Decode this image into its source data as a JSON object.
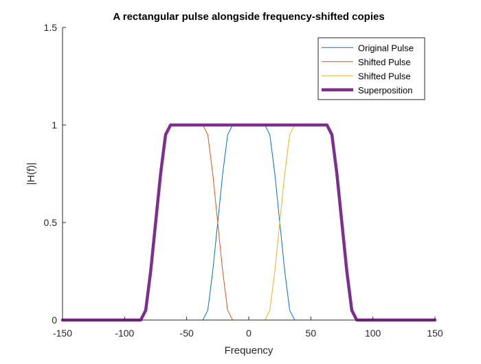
{
  "chart_data": {
    "type": "line",
    "title": "A rectangular pulse alongside frequency-shifted copies",
    "xlabel": "Frequency",
    "ylabel": "|H(f)|",
    "xlim": [
      -150,
      150
    ],
    "ylim": [
      0,
      1.5
    ],
    "xticks": [
      -150,
      -100,
      -50,
      0,
      50,
      100,
      150
    ],
    "yticks": [
      0,
      0.5,
      1,
      1.5
    ],
    "x_tick_labels": [
      "-150",
      "-100",
      "-50",
      "0",
      "50",
      "100",
      "150"
    ],
    "y_tick_labels": [
      "0",
      "0.5",
      "1",
      "1.5"
    ],
    "grid": false,
    "legend_position": "top-right",
    "series": [
      {
        "name": "Original Pulse",
        "color": "#0072BD",
        "line_width": "thin",
        "x": [
          -150,
          -37,
          -33,
          -29,
          -25,
          -21,
          -17,
          -13,
          13,
          17,
          21,
          25,
          29,
          33,
          37,
          150
        ],
        "y": [
          0,
          0,
          0.05,
          0.25,
          0.5,
          0.75,
          0.95,
          1,
          1,
          0.95,
          0.75,
          0.5,
          0.25,
          0.05,
          0,
          0
        ]
      },
      {
        "name": "Shifted Pulse",
        "color": "#D95319",
        "line_width": "thin",
        "x": [
          -150,
          -87,
          -83,
          -79,
          -75,
          -71,
          -67,
          -63,
          -37,
          -33,
          -29,
          -25,
          -21,
          -17,
          -13,
          150
        ],
        "y": [
          0,
          0,
          0.05,
          0.25,
          0.5,
          0.75,
          0.95,
          1,
          1,
          0.95,
          0.75,
          0.5,
          0.25,
          0.05,
          0,
          0
        ]
      },
      {
        "name": "Shifted Pulse",
        "color": "#EDB120",
        "line_width": "thin",
        "x": [
          -150,
          13,
          17,
          21,
          25,
          29,
          33,
          37,
          63,
          67,
          71,
          75,
          79,
          83,
          87,
          150
        ],
        "y": [
          0,
          0,
          0.05,
          0.25,
          0.5,
          0.75,
          0.95,
          1,
          1,
          0.95,
          0.75,
          0.5,
          0.25,
          0.05,
          0,
          0
        ]
      },
      {
        "name": "Superposition",
        "color": "#7E2F8E",
        "line_width": "thick",
        "x": [
          -150,
          -87,
          -83,
          -79,
          -75,
          -71,
          -67,
          -63,
          63,
          67,
          71,
          75,
          79,
          83,
          87,
          150
        ],
        "y": [
          0,
          0,
          0.05,
          0.25,
          0.5,
          0.75,
          0.95,
          1,
          1,
          0.95,
          0.75,
          0.5,
          0.25,
          0.05,
          0,
          0
        ]
      }
    ]
  }
}
